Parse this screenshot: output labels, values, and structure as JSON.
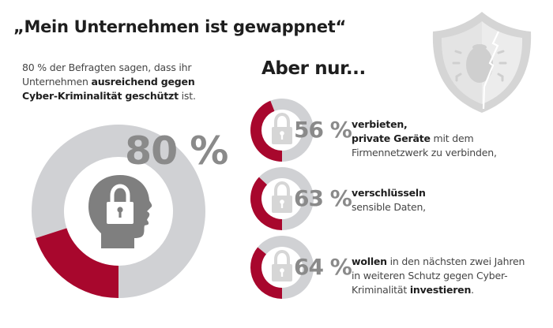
{
  "header": {
    "title": "„Mein Unternehmen ist gewappnet“"
  },
  "intro": {
    "line1": "80 % der Befragten sagen, dass ihr",
    "line2_regular": "Unternehmen ",
    "line2_bold": "ausreichend gegen",
    "line3_bold": "Cyber-Kriminalität geschützt",
    "line3_regular": " ist."
  },
  "main_stat": {
    "value_label": "80 %",
    "value": 80,
    "icon": "head-lock-icon"
  },
  "subheading": "Aber nur...",
  "stats": [
    {
      "value": 56,
      "value_label": "56 %",
      "icon": "lock-icon",
      "lines": [
        [
          {
            "text": "verbieten,",
            "bold": true
          }
        ],
        [
          {
            "text": "private Geräte",
            "bold": true
          },
          {
            "text": " mit dem",
            "bold": false
          }
        ],
        [
          {
            "text": "Firmennetzwerk zu verbinden,",
            "bold": false
          }
        ]
      ]
    },
    {
      "value": 63,
      "value_label": "63 %",
      "icon": "lock-icon",
      "lines": [
        [
          {
            "text": "verschlüsseln",
            "bold": true
          }
        ],
        [
          {
            "text": "sensible Daten,",
            "bold": false
          }
        ]
      ]
    },
    {
      "value": 64,
      "value_label": "64 %",
      "icon": "lock-icon",
      "lines": [
        [
          {
            "text": "wollen",
            "bold": true
          },
          {
            "text": " in den nächsten zwei Jahren",
            "bold": false
          }
        ],
        [
          {
            "text": "in weiteren Schutz gegen Cyber-",
            "bold": false
          }
        ],
        [
          {
            "text": "Kriminalität ",
            "bold": false
          },
          {
            "text": "investieren",
            "bold": true
          },
          {
            "text": ".",
            "bold": false
          }
        ]
      ]
    }
  ],
  "decoration": {
    "icon": "broken-shield-bug-icon"
  },
  "colors": {
    "accent_red": "#a8072d",
    "ring_gray": "#d0d1d4",
    "value_gray": "#8a8a8a",
    "icon_gray": "#7f7f7f",
    "lock_light": "#d6d6d6"
  }
}
